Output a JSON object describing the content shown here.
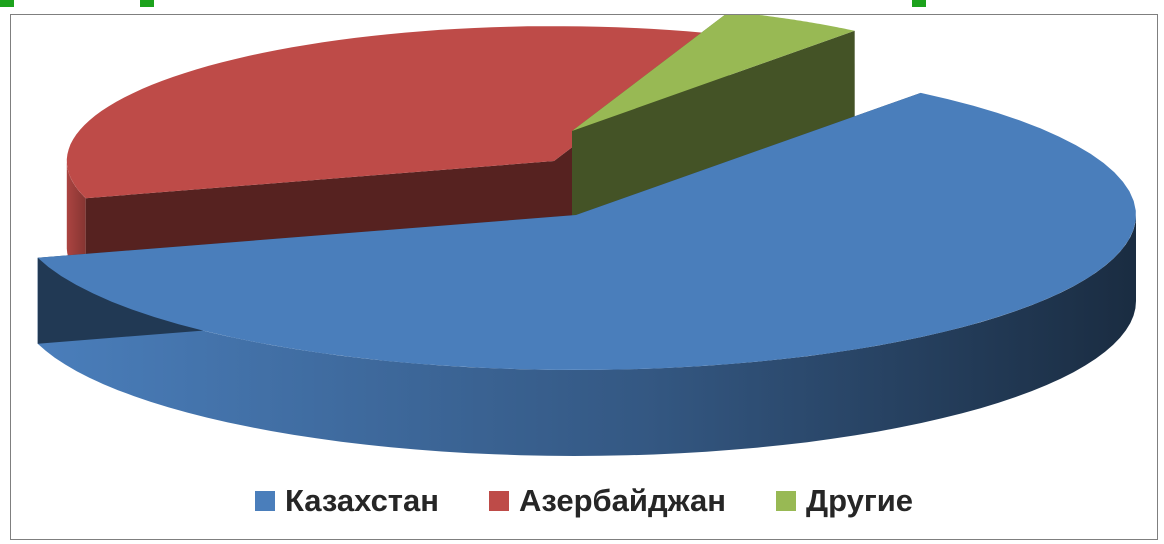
{
  "chart_data": {
    "type": "pie",
    "style": "3d-exploded",
    "categories": [
      "Казахстан",
      "Азербайджан",
      "Другие"
    ],
    "values": [
      60,
      35,
      5
    ],
    "colors": [
      "#4a7ebb",
      "#be4b48",
      "#98b954"
    ],
    "legend_position": "bottom"
  },
  "handle_color": "#1ca21c"
}
